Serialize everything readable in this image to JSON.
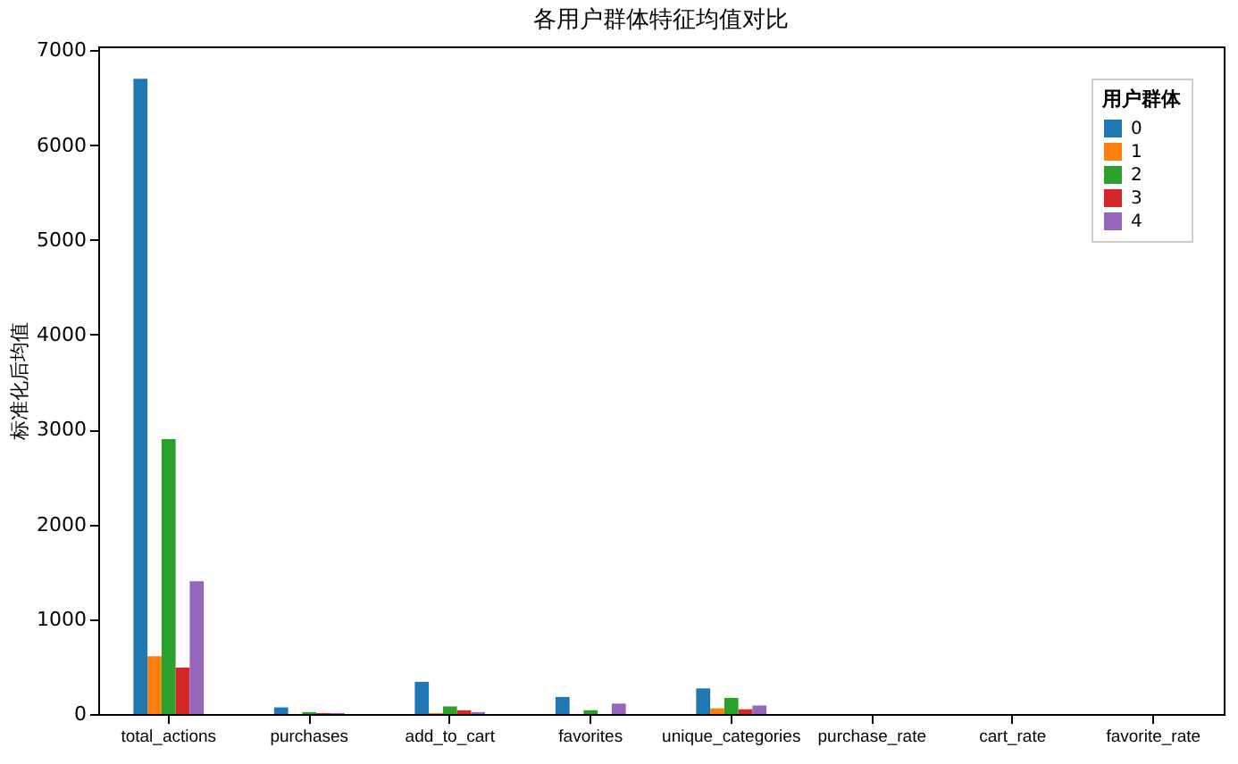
{
  "chart_data": {
    "type": "bar",
    "title": "各用户群体特征均值对比",
    "ylabel": "标准化后均值",
    "legend_title": "用户群体",
    "categories": [
      "total_actions",
      "purchases",
      "add_to_cart",
      "favorites",
      "unique_categories",
      "purchase_rate",
      "cart_rate",
      "favorite_rate"
    ],
    "series": [
      {
        "name": "0",
        "color": "#1f77b4",
        "values": [
          6700,
          70,
          340,
          180,
          270,
          0,
          0,
          0
        ]
      },
      {
        "name": "1",
        "color": "#ff7f0e",
        "values": [
          610,
          0,
          10,
          0,
          60,
          0,
          0,
          0
        ]
      },
      {
        "name": "2",
        "color": "#2ca02c",
        "values": [
          2900,
          20,
          80,
          40,
          170,
          0,
          0,
          0
        ]
      },
      {
        "name": "3",
        "color": "#d62728",
        "values": [
          490,
          10,
          40,
          0,
          50,
          0,
          0,
          0
        ]
      },
      {
        "name": "4",
        "color": "#9467bd",
        "values": [
          1400,
          10,
          20,
          110,
          90,
          0,
          0,
          0
        ]
      }
    ],
    "ylim": [
      0,
      7040
    ],
    "yticks": [
      0,
      1000,
      2000,
      3000,
      4000,
      5000,
      6000,
      7000
    ],
    "grid": false,
    "legend": "top right"
  }
}
